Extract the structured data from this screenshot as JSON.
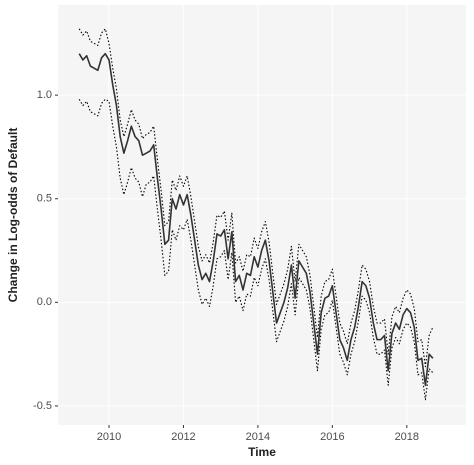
{
  "chart_data": {
    "type": "line",
    "x_label": "Time",
    "y_label": "Change in Log-odds of Default",
    "x": [
      2009.2,
      2009.3,
      2009.4,
      2009.5,
      2009.6,
      2009.7,
      2009.8,
      2009.9,
      2010.0,
      2010.1,
      2010.2,
      2010.3,
      2010.4,
      2010.5,
      2010.6,
      2010.7,
      2010.8,
      2010.9,
      2011.0,
      2011.1,
      2011.2,
      2011.3,
      2011.4,
      2011.5,
      2011.6,
      2011.7,
      2011.8,
      2011.9,
      2012.0,
      2012.1,
      2012.2,
      2012.3,
      2012.4,
      2012.5,
      2012.6,
      2012.7,
      2012.8,
      2012.9,
      2013.0,
      2013.1,
      2013.2,
      2013.3,
      2013.4,
      2013.5,
      2013.6,
      2013.7,
      2013.8,
      2013.9,
      2014.0,
      2014.1,
      2014.2,
      2014.3,
      2014.4,
      2014.5,
      2014.6,
      2014.7,
      2014.8,
      2014.9,
      2015.0,
      2015.1,
      2015.2,
      2015.3,
      2015.4,
      2015.5,
      2015.6,
      2015.7,
      2015.8,
      2015.9,
      2016.0,
      2016.1,
      2016.2,
      2016.3,
      2016.4,
      2016.5,
      2016.6,
      2016.7,
      2016.8,
      2016.9,
      2017.0,
      2017.1,
      2017.2,
      2017.3,
      2017.4,
      2017.5,
      2017.6,
      2017.7,
      2017.8,
      2017.9,
      2018.0,
      2018.1,
      2018.2,
      2018.3,
      2018.4,
      2018.5,
      2018.6,
      2018.7
    ],
    "series": [
      {
        "color": "#000000",
        "dash": "dotted",
        "values": [
          1.32,
          1.29,
          1.31,
          1.26,
          1.25,
          1.24,
          1.3,
          1.32,
          1.25,
          1.13,
          1.03,
          0.88,
          0.8,
          0.86,
          0.93,
          0.88,
          0.86,
          0.79,
          0.81,
          0.82,
          0.85,
          0.69,
          0.54,
          0.37,
          0.39,
          0.59,
          0.54,
          0.61,
          0.56,
          0.61,
          0.51,
          0.39,
          0.27,
          0.2,
          0.23,
          0.19,
          0.29,
          0.42,
          0.41,
          0.44,
          0.3,
          0.43,
          0.19,
          0.22,
          0.15,
          0.23,
          0.22,
          0.31,
          0.26,
          0.34,
          0.39,
          0.29,
          0.14,
          -0.01,
          0.04,
          0.09,
          0.16,
          0.27,
          0.1,
          0.28,
          0.25,
          0.22,
          0.13,
          -0.02,
          -0.17,
          0.03,
          0.1,
          0.11,
          0.16,
          0.03,
          -0.1,
          -0.14,
          -0.2,
          -0.1,
          -0.04,
          0.06,
          0.18,
          0.16,
          0.1,
          -0.02,
          -0.1,
          -0.1,
          -0.08,
          -0.25,
          -0.07,
          -0.02,
          -0.05,
          0.02,
          0.06,
          0.04,
          -0.03,
          -0.19,
          -0.18,
          -0.31,
          -0.16,
          -0.12
        ]
      },
      {
        "color": "#000000",
        "dash": "dotted",
        "values": [
          0.98,
          0.95,
          0.97,
          0.92,
          0.91,
          0.9,
          0.96,
          0.98,
          0.97,
          0.85,
          0.75,
          0.6,
          0.52,
          0.58,
          0.65,
          0.6,
          0.58,
          0.51,
          0.57,
          0.58,
          0.61,
          0.45,
          0.3,
          0.13,
          0.15,
          0.35,
          0.3,
          0.37,
          0.35,
          0.4,
          0.3,
          0.18,
          0.06,
          -0.01,
          0.02,
          -0.02,
          0.08,
          0.21,
          0.22,
          0.25,
          0.11,
          0.24,
          0.0,
          0.03,
          -0.04,
          0.04,
          0.03,
          0.12,
          0.08,
          0.16,
          0.21,
          0.11,
          -0.04,
          -0.19,
          -0.14,
          -0.09,
          -0.02,
          0.09,
          -0.06,
          0.12,
          0.09,
          0.06,
          -0.03,
          -0.18,
          -0.33,
          -0.13,
          -0.06,
          -0.05,
          0.01,
          -0.12,
          -0.25,
          -0.29,
          -0.35,
          -0.25,
          -0.19,
          -0.09,
          0.03,
          0.01,
          -0.05,
          -0.17,
          -0.25,
          -0.25,
          -0.23,
          -0.4,
          -0.22,
          -0.17,
          -0.2,
          -0.13,
          -0.1,
          -0.12,
          -0.19,
          -0.35,
          -0.34,
          -0.47,
          -0.32,
          -0.34
        ]
      },
      {
        "color": "#333333",
        "dash": "solid",
        "values": [
          1.2,
          1.17,
          1.19,
          1.14,
          1.13,
          1.12,
          1.18,
          1.2,
          1.17,
          1.05,
          0.95,
          0.8,
          0.72,
          0.78,
          0.85,
          0.8,
          0.78,
          0.71,
          0.72,
          0.73,
          0.76,
          0.6,
          0.45,
          0.28,
          0.3,
          0.5,
          0.45,
          0.52,
          0.47,
          0.52,
          0.42,
          0.3,
          0.18,
          0.11,
          0.14,
          0.1,
          0.2,
          0.33,
          0.32,
          0.35,
          0.21,
          0.34,
          0.1,
          0.13,
          0.06,
          0.14,
          0.13,
          0.22,
          0.17,
          0.25,
          0.3,
          0.2,
          0.05,
          -0.1,
          -0.05,
          0.0,
          0.07,
          0.18,
          0.02,
          0.2,
          0.17,
          0.14,
          0.05,
          -0.1,
          -0.25,
          -0.05,
          0.02,
          0.03,
          0.08,
          -0.05,
          -0.18,
          -0.22,
          -0.28,
          -0.18,
          -0.12,
          -0.02,
          0.1,
          0.08,
          0.02,
          -0.1,
          -0.18,
          -0.18,
          -0.16,
          -0.33,
          -0.15,
          -0.1,
          -0.13,
          -0.06,
          -0.03,
          -0.05,
          -0.12,
          -0.28,
          -0.27,
          -0.4,
          -0.25,
          -0.27
        ]
      }
    ],
    "xlim": [
      2008.63,
      2019.59
    ],
    "ylim": [
      -0.592,
      1.435
    ],
    "xticks": [
      2010,
      2012,
      2014,
      2016,
      2018
    ],
    "yticks": [
      {
        "value": 1.0,
        "label": "1.0"
      },
      0.5,
      {
        "value": 0.0,
        "label": "0.0"
      },
      -0.5
    ],
    "grid": true
  }
}
